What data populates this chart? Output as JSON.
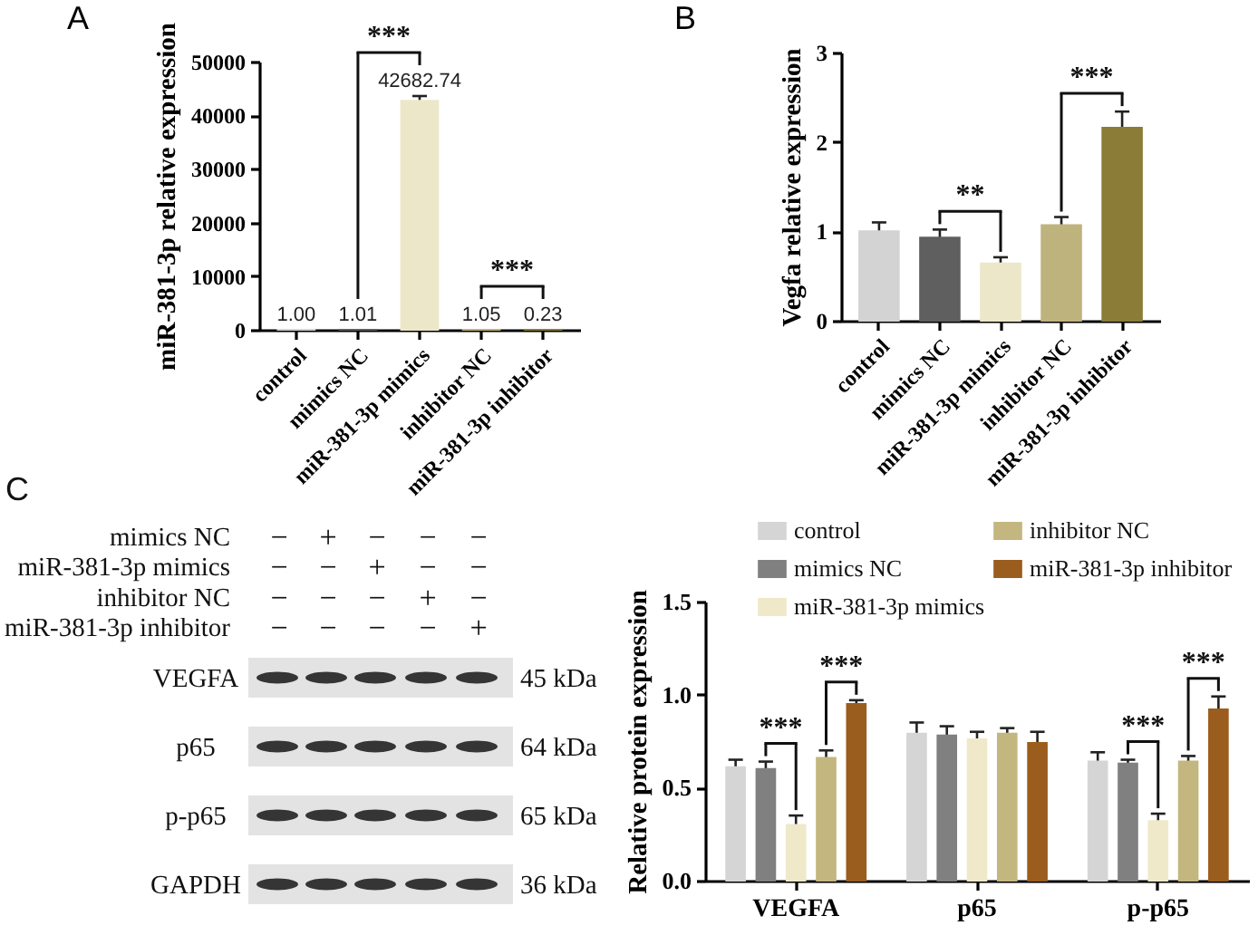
{
  "chart_data": [
    {
      "type": "bar",
      "title": "A",
      "ylabel": "miR-381-3p relative expression",
      "categories": [
        "control",
        "mimics NC",
        "miR-381-3p mimics",
        "inhibitor NC",
        "miR-381-3p inhibitor"
      ],
      "values": [
        1.0,
        1.01,
        42682.74,
        1.05,
        0.23
      ],
      "colors": [
        "#d3d3d3",
        "#5f5f5f",
        "#ede7ca",
        "#bfb37d",
        "#8b7c37"
      ],
      "errors": [
        null,
        null,
        900,
        null,
        null
      ],
      "value_labels": [
        "1.00",
        "1.01",
        "42682.74",
        "1.05",
        "0.23"
      ],
      "ylim": [
        0,
        50000
      ],
      "yticks": [
        0,
        10000,
        20000,
        30000,
        40000,
        50000
      ],
      "annotations": [
        {
          "text": "***",
          "x": "miR-381-3p mimics",
          "y": 42682.74
        },
        {
          "text": "***",
          "x": "miR-381-3p inhibitor",
          "y": 0.23
        }
      ]
    },
    {
      "type": "bar",
      "title": "B",
      "ylabel": "Vegfa relative expression",
      "categories": [
        "control",
        "mimics NC",
        "miR-381-3p mimics",
        "inhibitor NC",
        "miR-381-3p inhibitor"
      ],
      "values": [
        1.0,
        0.93,
        0.64,
        1.07,
        2.16
      ],
      "colors": [
        "#d3d3d3",
        "#5f5f5f",
        "#ede7ca",
        "#bfb37d",
        "#8b7c37"
      ],
      "errors": [
        0.1,
        0.09,
        0.07,
        0.09,
        0.18
      ],
      "ylim": [
        0,
        3
      ],
      "yticks": [
        0,
        1,
        2,
        3
      ],
      "annotations": [
        {
          "text": "**",
          "x": "miR-381-3p mimics",
          "y": 0.64
        },
        {
          "text": "***",
          "x": "miR-381-3p inhibitor",
          "y": 2.16
        }
      ]
    },
    {
      "type": "other",
      "title": "C",
      "annotations": [
        "mimics NC",
        "−",
        "+",
        "−",
        "−",
        "−",
        "miR-381-3p mimics",
        "−",
        "−",
        "+",
        "−",
        "−",
        "inhibitor NC",
        "−",
        "−",
        "−",
        "+",
        "−",
        "miR-381-3p inhibitor",
        "−",
        "−",
        "−",
        "−",
        "+",
        "VEGFA",
        "45 kDa",
        "p65",
        "64 kDa",
        "p-p65",
        "65 kDa",
        "GAPDH",
        "36 kDa"
      ]
    },
    {
      "type": "bar",
      "ylabel": "Relative protein expression",
      "categories": [
        "VEGFA",
        "p65",
        "p-p65"
      ],
      "series": [
        {
          "name": "control",
          "color": "#d5d5d5",
          "values": [
            0.61,
            0.79,
            0.64
          ],
          "errors": [
            0.04,
            0.06,
            0.05
          ]
        },
        {
          "name": "mimics NC",
          "color": "#808080",
          "values": [
            0.6,
            0.78,
            0.63
          ],
          "errors": [
            0.04,
            0.05,
            0.02
          ]
        },
        {
          "name": "miR-381-3p mimics",
          "color": "#efe9ca",
          "values": [
            0.3,
            0.76,
            0.32
          ],
          "errors": [
            0.05,
            0.04,
            0.04
          ]
        },
        {
          "name": "inhibitor NC",
          "color": "#c3b77f",
          "values": [
            0.66,
            0.79,
            0.64
          ],
          "errors": [
            0.04,
            0.03,
            0.03
          ]
        },
        {
          "name": "miR-381-3p inhibitor",
          "color": "#9a5d1d",
          "values": [
            0.95,
            0.74,
            0.92
          ],
          "errors": [
            0.02,
            0.06,
            0.07
          ]
        }
      ],
      "ylim": [
        0,
        1.5
      ],
      "yticks": [
        {
          "value": 0,
          "label": "0.0"
        },
        0.5,
        {
          "value": 1,
          "label": "1.0"
        },
        1.5
      ],
      "legend": "top",
      "annotations": [
        {
          "text": "***",
          "x": "VEGFA",
          "y": 0.3
        },
        {
          "text": "***",
          "x": "p-p65",
          "y": 0.32
        },
        {
          "text": "***",
          "y": 0.66
        },
        {
          "text": "***",
          "y": 0.64
        }
      ]
    }
  ]
}
